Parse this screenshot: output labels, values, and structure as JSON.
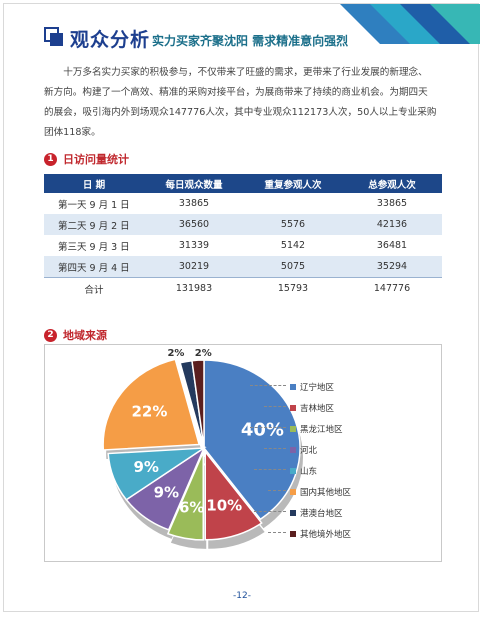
{
  "header": {
    "title": "观众分析",
    "subtitle": "实力买家齐聚沈阳 需求精准意向强烈"
  },
  "intro": {
    "line1": "十万多名实力买家的积极参与，不仅带来了旺盛的需求，更带来了行业发展的新理念、",
    "line2": "新方向。构建了一个高效、精准的采购对接平台，为展商带来了持续的商业机会。为期四天",
    "line3": "的展会，吸引海内外到场观众147776人次，其中专业观众112173人次，50人以上专业采购",
    "line4": "团体118家。"
  },
  "section1": {
    "num": "1",
    "title": "日访问量统计"
  },
  "table": {
    "headers": [
      "日  期",
      "每日观众数量",
      "重复参观人次",
      "总参观人次"
    ],
    "rows": [
      [
        "第一天 9 月 1 日",
        "33865",
        "",
        "33865"
      ],
      [
        "第二天 9 月 2 日",
        "36560",
        "5576",
        "42136"
      ],
      [
        "第三天 9 月 3 日",
        "31339",
        "5142",
        "36481"
      ],
      [
        "第四天 9 月 4 日",
        "30219",
        "5075",
        "35294"
      ]
    ],
    "total": [
      "合计",
      "131983",
      "15793",
      "147776"
    ]
  },
  "section2": {
    "num": "2",
    "title": "地域来源"
  },
  "chart_data": {
    "type": "pie",
    "title": "",
    "categories": [
      "辽宁地区",
      "吉林地区",
      "黑龙江地区",
      "河北",
      "山东",
      "国内其他地区",
      "港澳台地区",
      "其他境外地区"
    ],
    "values": [
      40,
      10,
      6,
      9,
      9,
      22,
      2,
      2
    ],
    "labels": [
      "40%",
      "10%",
      "6%",
      "9%",
      "9%",
      "22%",
      "2%",
      "2%"
    ],
    "colors": [
      "#4a7fc3",
      "#c0434a",
      "#9abb59",
      "#7d63a8",
      "#49abc8",
      "#f59d46",
      "#243a5e",
      "#5a1f1f"
    ],
    "legend": "right"
  },
  "page_number": "-12-"
}
